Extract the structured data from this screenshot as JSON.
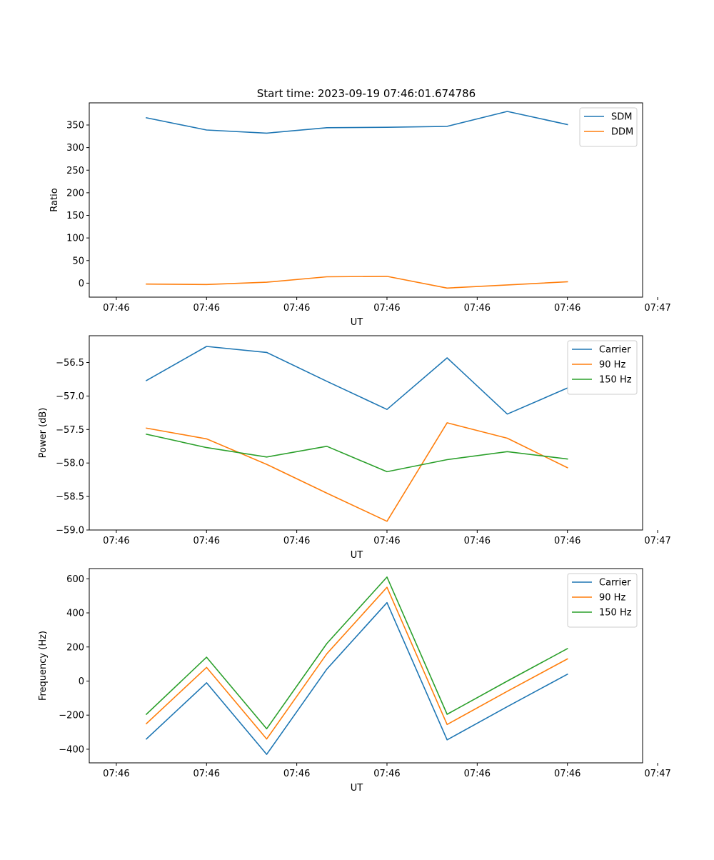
{
  "figure_title": "Start time: 2023-09-19 07:46:01.674786",
  "colors": {
    "blue": "#1f77b4",
    "orange": "#ff7f0e",
    "green": "#2ca02c"
  },
  "chart_data": [
    {
      "type": "line",
      "title": "Start time: 2023-09-19 07:46:01.674786",
      "xlabel": "UT",
      "ylabel": "Ratio",
      "xlim": [
        -0.45,
        8.75
      ],
      "ylim": [
        -31,
        399
      ],
      "x": [
        0.5,
        1.5,
        2.5,
        3.5,
        4.5,
        5.5,
        6.5,
        7.5
      ],
      "x_ticks": [
        0,
        1.5,
        3,
        4.5,
        6,
        7.5,
        9
      ],
      "x_tick_labels": [
        "07:46",
        "07:46",
        "07:46",
        "07:46",
        "07:46",
        "07:46",
        "07:47"
      ],
      "y_ticks": [
        0,
        50,
        100,
        150,
        200,
        250,
        300,
        350
      ],
      "y_tick_labels": [
        "0",
        "50",
        "100",
        "150",
        "200",
        "250",
        "300",
        "350"
      ],
      "legend_position": "top-right",
      "series": [
        {
          "name": "SDM",
          "color": "#1f77b4",
          "values": [
            366,
            339,
            332,
            344,
            345,
            347,
            380,
            351
          ]
        },
        {
          "name": "DDM",
          "color": "#ff7f0e",
          "values": [
            -2,
            -3,
            2,
            14,
            15,
            -11,
            -4,
            3
          ]
        }
      ]
    },
    {
      "type": "line",
      "title": "",
      "xlabel": "UT",
      "ylabel": "Power (dB)",
      "xlim": [
        -0.45,
        8.75
      ],
      "ylim": [
        -59.0,
        -56.1
      ],
      "x": [
        0.5,
        1.5,
        2.5,
        3.5,
        4.5,
        5.5,
        6.5,
        7.5
      ],
      "x_ticks": [
        0,
        1.5,
        3,
        4.5,
        6,
        7.5,
        9
      ],
      "x_tick_labels": [
        "07:46",
        "07:46",
        "07:46",
        "07:46",
        "07:46",
        "07:46",
        "07:47"
      ],
      "y_ticks": [
        -59.0,
        -58.5,
        -58.0,
        -57.5,
        -57.0,
        -56.5
      ],
      "y_tick_labels": [
        "−59.0",
        "−58.5",
        "−58.0",
        "−57.5",
        "−57.0",
        "−56.5"
      ],
      "legend_position": "top-right",
      "series": [
        {
          "name": "Carrier",
          "color": "#1f77b4",
          "values": [
            -56.77,
            -56.26,
            -56.35,
            -56.78,
            -57.2,
            -56.43,
            -57.27,
            -56.88
          ]
        },
        {
          "name": "90 Hz",
          "color": "#ff7f0e",
          "values": [
            -57.48,
            -57.64,
            -58.02,
            -58.45,
            -58.87,
            -57.4,
            -57.63,
            -58.07
          ]
        },
        {
          "name": "150 Hz",
          "color": "#2ca02c",
          "values": [
            -57.57,
            -57.77,
            -57.91,
            -57.75,
            -58.13,
            -57.95,
            -57.83,
            -57.94
          ]
        }
      ]
    },
    {
      "type": "line",
      "title": "",
      "xlabel": "UT",
      "ylabel": "Frequency (Hz)",
      "xlim": [
        -0.45,
        8.75
      ],
      "ylim": [
        -480,
        660
      ],
      "x": [
        0.5,
        1.5,
        2.5,
        3.5,
        4.5,
        5.5,
        6.5,
        7.5
      ],
      "x_ticks": [
        0,
        1.5,
        3,
        4.5,
        6,
        7.5,
        9
      ],
      "x_tick_labels": [
        "07:46",
        "07:46",
        "07:46",
        "07:46",
        "07:46",
        "07:46",
        "07:47"
      ],
      "y_ticks": [
        -400,
        -200,
        0,
        200,
        400,
        600
      ],
      "y_tick_labels": [
        "−400",
        "−200",
        "0",
        "200",
        "400",
        "600"
      ],
      "legend_position": "top-right",
      "series": [
        {
          "name": "Carrier",
          "color": "#1f77b4",
          "values": [
            -340,
            -10,
            -430,
            70,
            460,
            -345,
            -150,
            40
          ]
        },
        {
          "name": "90 Hz",
          "color": "#ff7f0e",
          "values": [
            -250,
            80,
            -340,
            160,
            550,
            -255,
            -60,
            130
          ]
        },
        {
          "name": "150 Hz",
          "color": "#2ca02c",
          "values": [
            -195,
            140,
            -280,
            220,
            610,
            -195,
            0,
            190
          ]
        }
      ]
    }
  ]
}
